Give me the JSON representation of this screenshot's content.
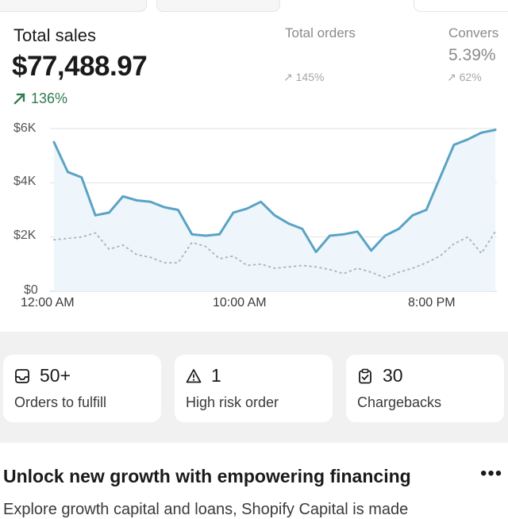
{
  "metrics": {
    "total_sales": {
      "label": "Total sales",
      "value": "$77,488.97",
      "trend": "136%"
    },
    "total_orders": {
      "label": "Total orders",
      "trend": "145%"
    },
    "conversion": {
      "label": "Convers",
      "value": "5.39%",
      "trend": "62%"
    }
  },
  "colors": {
    "current_line": "#5aa3c4",
    "area_fill": "#eef6fb",
    "comparison_line": "#a9b9c0",
    "trend_positive": "#2f7a4f",
    "trend_muted": "#a6a6a6"
  },
  "chart_data": {
    "type": "line",
    "y_ticks": [
      "$6K",
      "$4K",
      "$2K",
      "$0"
    ],
    "x_ticks": [
      "12:00 AM",
      "10:00 AM",
      "8:00 PM"
    ],
    "ylim": [
      0,
      6000
    ],
    "x_points": 33,
    "grid": true,
    "series": [
      {
        "style": "solid",
        "values": [
          5500,
          4400,
          4200,
          2800,
          2900,
          3500,
          3350,
          3300,
          3100,
          3000,
          2100,
          2050,
          2100,
          2900,
          3050,
          3300,
          2800,
          2500,
          2300,
          1450,
          2050,
          2100,
          2200,
          1500,
          2050,
          2300,
          2800,
          3000,
          4200,
          5400,
          5600,
          5850,
          5950
        ]
      },
      {
        "style": "dotted",
        "values": [
          1900,
          1950,
          2000,
          2150,
          1550,
          1700,
          1350,
          1250,
          1050,
          1050,
          1800,
          1650,
          1200,
          1300,
          950,
          1000,
          850,
          900,
          950,
          900,
          800,
          650,
          850,
          700,
          500,
          700,
          850,
          1050,
          1300,
          1750,
          2000,
          1400,
          2200
        ]
      }
    ]
  },
  "cards": [
    {
      "icon": "inbox-icon",
      "value": "50+",
      "label": "Orders to fulfill"
    },
    {
      "icon": "warning-triangle-icon",
      "value": "1",
      "label": "High risk order"
    },
    {
      "icon": "clipboard-check-icon",
      "value": "30",
      "label": "Chargebacks"
    }
  ],
  "promo": {
    "title": "Unlock new growth with empowering financing",
    "more_label": "•••",
    "body_cut": "Explore growth capital and loans, Shopify Capital is made"
  }
}
